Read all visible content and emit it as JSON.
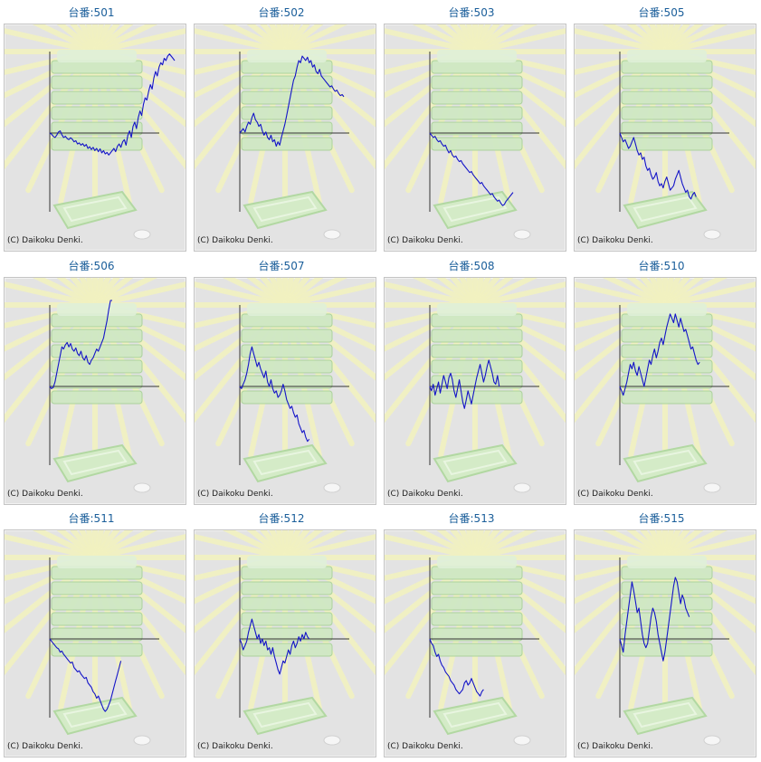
{
  "credit": "(C) Daikoku Denki.",
  "colors": {
    "title": "#1a5e9a",
    "line": "#1414c8",
    "axis": "#333333",
    "panel": "#e3e3e3"
  },
  "machines": [
    {
      "title": "台番:501",
      "series": [
        0,
        -5,
        -15,
        -20,
        -10,
        5,
        10,
        -8,
        -20,
        -15,
        -25,
        -30,
        -22,
        -28,
        -40,
        -35,
        -50,
        -45,
        -55,
        -48,
        -60,
        -52,
        -70,
        -62,
        -75,
        -65,
        -80,
        -70,
        -85,
        -72,
        -90,
        -80,
        -95,
        -88,
        -100,
        -90,
        -80,
        -70,
        -85,
        -60,
        -50,
        -65,
        -40,
        -30,
        -55,
        -10,
        10,
        -20,
        30,
        50,
        20,
        70,
        100,
        80,
        130,
        160,
        150,
        190,
        220,
        200,
        250,
        280,
        260,
        300,
        320,
        310,
        340,
        330,
        350,
        360,
        350,
        340,
        330
      ]
    },
    {
      "title": "台番:502",
      "series": [
        0,
        10,
        20,
        5,
        30,
        50,
        40,
        70,
        90,
        60,
        50,
        30,
        40,
        10,
        -10,
        5,
        -20,
        -30,
        -10,
        -40,
        -30,
        -60,
        -40,
        -55,
        -20,
        10,
        40,
        80,
        120,
        160,
        200,
        240,
        260,
        300,
        330,
        320,
        350,
        340,
        330,
        345,
        320,
        330,
        300,
        310,
        280,
        270,
        290,
        260,
        250,
        240,
        230,
        220,
        210,
        215,
        200,
        190,
        195,
        180,
        170,
        175,
        165
      ]
    },
    {
      "title": "台番:503",
      "series": [
        0,
        -10,
        -20,
        -15,
        -30,
        -40,
        -35,
        -50,
        -60,
        -55,
        -75,
        -90,
        -80,
        -100,
        -110,
        -105,
        -120,
        -130,
        -125,
        -140,
        -150,
        -160,
        -170,
        -180,
        -175,
        -190,
        -200,
        -210,
        -220,
        -230,
        -225,
        -240,
        -250,
        -260,
        -270,
        -280,
        -275,
        -290,
        -300,
        -310,
        -305,
        -320,
        -330,
        -325,
        -310,
        -300,
        -290,
        -280,
        -270
      ]
    },
    {
      "title": "台番:505",
      "series": [
        0,
        -20,
        -40,
        -30,
        -50,
        -70,
        -60,
        -40,
        -20,
        -50,
        -80,
        -100,
        -90,
        -120,
        -110,
        -150,
        -170,
        -160,
        -190,
        -210,
        -200,
        -180,
        -220,
        -240,
        -230,
        -250,
        -220,
        -200,
        -230,
        -260,
        -250,
        -240,
        -210,
        -190,
        -170,
        -200,
        -230,
        -250,
        -270,
        -260,
        -290,
        -300,
        -280,
        -270,
        -290
      ]
    },
    {
      "title": "台番:506",
      "series": [
        0,
        -10,
        -5,
        20,
        60,
        100,
        140,
        180,
        170,
        190,
        200,
        180,
        195,
        170,
        160,
        175,
        150,
        140,
        160,
        130,
        120,
        140,
        110,
        100,
        120,
        130,
        150,
        170,
        160,
        180,
        200,
        220,
        260,
        300,
        350,
        400,
        450
      ]
    },
    {
      "title": "台番:507",
      "series": [
        0,
        -10,
        10,
        30,
        60,
        100,
        150,
        180,
        150,
        120,
        90,
        110,
        80,
        60,
        40,
        70,
        20,
        0,
        30,
        -10,
        -30,
        -20,
        -50,
        -40,
        -20,
        10,
        -20,
        -60,
        -80,
        -100,
        -90,
        -120,
        -140,
        -130,
        -170,
        -190,
        -210,
        -200,
        -230,
        -250,
        -240
      ]
    },
    {
      "title": "台番:508",
      "series": [
        0,
        -20,
        10,
        -40,
        -10,
        20,
        -30,
        10,
        50,
        20,
        -10,
        40,
        60,
        30,
        -20,
        -50,
        -10,
        30,
        -20,
        -70,
        -100,
        -60,
        -20,
        -50,
        -80,
        -40,
        0,
        40,
        70,
        100,
        60,
        20,
        50,
        90,
        120,
        90,
        60,
        20,
        10,
        50,
        0
      ]
    },
    {
      "title": "台番:510",
      "series": [
        0,
        -20,
        -40,
        -10,
        20,
        60,
        100,
        80,
        110,
        70,
        50,
        90,
        60,
        30,
        0,
        40,
        80,
        120,
        100,
        140,
        170,
        130,
        160,
        200,
        220,
        190,
        230,
        270,
        300,
        330,
        310,
        290,
        330,
        300,
        270,
        310,
        280,
        250,
        260,
        230,
        200,
        170,
        180,
        150,
        120,
        100,
        110
      ]
    },
    {
      "title": "台番:511",
      "series": [
        0,
        -10,
        -20,
        -30,
        -40,
        -45,
        -60,
        -55,
        -70,
        -80,
        -90,
        -100,
        -110,
        -105,
        -130,
        -140,
        -150,
        -145,
        -160,
        -170,
        -180,
        -175,
        -200,
        -210,
        -220,
        -240,
        -250,
        -270,
        -260,
        -280,
        -300,
        -320,
        -330,
        -320,
        -300,
        -280,
        -250,
        -220,
        -190,
        -160,
        -130,
        -100
      ]
    },
    {
      "title": "台番:512",
      "series": [
        0,
        -20,
        -50,
        -30,
        -10,
        30,
        60,
        90,
        60,
        30,
        0,
        20,
        -20,
        0,
        -30,
        -10,
        -50,
        -40,
        -70,
        -40,
        -80,
        -110,
        -140,
        -160,
        -130,
        -100,
        -110,
        -80,
        -50,
        -70,
        -30,
        -10,
        -40,
        -20,
        10,
        -10,
        20,
        0,
        30,
        10,
        0
      ]
    },
    {
      "title": "台番:513",
      "series": [
        0,
        -20,
        -30,
        -60,
        -80,
        -70,
        -100,
        -120,
        -130,
        -150,
        -160,
        -170,
        -190,
        -200,
        -210,
        -230,
        -240,
        -250,
        -240,
        -230,
        -200,
        -190,
        -210,
        -200,
        -180,
        -200,
        -220,
        -240,
        -250,
        -260,
        -240,
        -230
      ]
    },
    {
      "title": "台番:515",
      "series": [
        0,
        -30,
        -60,
        20,
        80,
        140,
        200,
        260,
        220,
        170,
        120,
        140,
        80,
        20,
        -20,
        -40,
        -20,
        40,
        100,
        140,
        120,
        80,
        20,
        -20,
        -60,
        -100,
        -60,
        0,
        60,
        120,
        180,
        240,
        280,
        260,
        210,
        160,
        200,
        180,
        140,
        120,
        100
      ]
    }
  ]
}
